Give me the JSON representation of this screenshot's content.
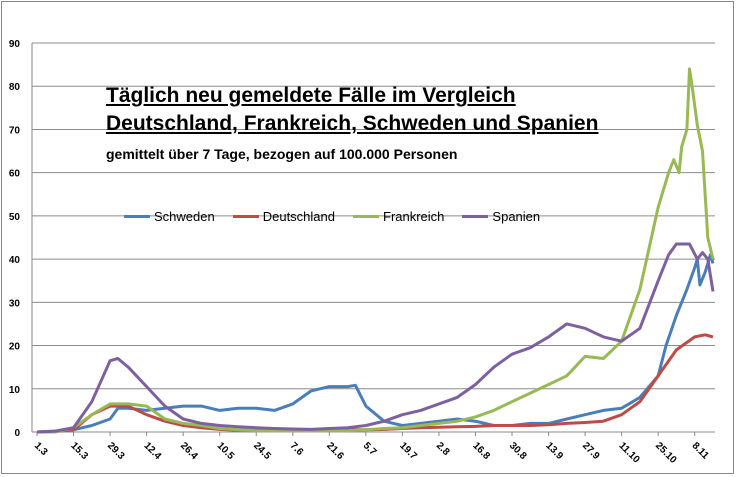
{
  "chart_data": {
    "type": "line",
    "title": "Täglich neu gemeldete Fälle im Vergleich",
    "title_line2": "Deutschland, Frankreich, Schweden und Spanien",
    "subtitle": "gemittelt über 7 Tage, bezogen auf 100.000 Personen",
    "xlabel": "",
    "ylabel": "",
    "ylim": [
      0,
      90
    ],
    "yticks": [
      0,
      10,
      20,
      30,
      40,
      50,
      60,
      70,
      80,
      90
    ],
    "xlim_days": [
      0,
      260
    ],
    "xtick_labels": [
      "1.3",
      "15.3",
      "29.3",
      "12.4",
      "26.4",
      "10.5",
      "24.5",
      "7.6",
      "21.6",
      "5.7",
      "19.7",
      "2.8",
      "16.8",
      "30.8",
      "13.9",
      "27.9",
      "11.10",
      "25.10",
      "8.11"
    ],
    "xtick_interval_days": 14,
    "grid": true,
    "legend_position": "center-left",
    "series": [
      {
        "name": "Schweden",
        "color": "#4a7ebb",
        "points": [
          [
            0,
            0
          ],
          [
            7,
            0.2
          ],
          [
            14,
            0.5
          ],
          [
            21,
            1.5
          ],
          [
            28,
            3
          ],
          [
            31,
            5.5
          ],
          [
            35,
            5.5
          ],
          [
            42,
            5
          ],
          [
            49,
            5.5
          ],
          [
            56,
            6
          ],
          [
            63,
            6
          ],
          [
            70,
            5
          ],
          [
            77,
            5.5
          ],
          [
            84,
            5.5
          ],
          [
            91,
            5
          ],
          [
            98,
            6.5
          ],
          [
            105,
            9.5
          ],
          [
            112,
            10.5
          ],
          [
            119,
            10.5
          ],
          [
            122,
            10.8
          ],
          [
            126,
            6
          ],
          [
            133,
            2.5
          ],
          [
            140,
            1.5
          ],
          [
            147,
            2
          ],
          [
            154,
            2.5
          ],
          [
            161,
            3
          ],
          [
            168,
            2.5
          ],
          [
            175,
            1.5
          ],
          [
            182,
            1.5
          ],
          [
            189,
            2
          ],
          [
            196,
            2
          ],
          [
            203,
            3
          ],
          [
            210,
            4
          ],
          [
            217,
            5
          ],
          [
            224,
            5.5
          ],
          [
            231,
            8
          ],
          [
            238,
            13
          ],
          [
            241,
            20
          ],
          [
            245,
            27
          ],
          [
            249,
            33
          ],
          [
            252,
            38
          ],
          [
            253,
            40
          ],
          [
            254,
            34
          ],
          [
            256,
            37
          ],
          [
            258,
            41
          ],
          [
            259,
            39
          ]
        ]
      },
      {
        "name": "Deutschland",
        "color": "#be4b48",
        "points": [
          [
            0,
            0
          ],
          [
            7,
            0.1
          ],
          [
            14,
            0.5
          ],
          [
            21,
            4
          ],
          [
            28,
            6
          ],
          [
            35,
            6
          ],
          [
            42,
            4
          ],
          [
            49,
            2.5
          ],
          [
            56,
            1.5
          ],
          [
            63,
            1
          ],
          [
            70,
            0.6
          ],
          [
            77,
            0.4
          ],
          [
            84,
            0.4
          ],
          [
            91,
            0.4
          ],
          [
            98,
            0.4
          ],
          [
            105,
            0.4
          ],
          [
            112,
            0.4
          ],
          [
            119,
            0.5
          ],
          [
            126,
            0.5
          ],
          [
            133,
            0.6
          ],
          [
            140,
            0.8
          ],
          [
            147,
            1
          ],
          [
            154,
            1.1
          ],
          [
            161,
            1.2
          ],
          [
            168,
            1.3
          ],
          [
            175,
            1.5
          ],
          [
            182,
            1.5
          ],
          [
            189,
            1.5
          ],
          [
            196,
            1.7
          ],
          [
            203,
            2
          ],
          [
            210,
            2.2
          ],
          [
            217,
            2.5
          ],
          [
            224,
            4
          ],
          [
            231,
            7
          ],
          [
            238,
            13
          ],
          [
            245,
            19
          ],
          [
            252,
            22
          ],
          [
            256,
            22.5
          ],
          [
            259,
            22
          ]
        ]
      },
      {
        "name": "Frankreich",
        "color": "#98b954",
        "points": [
          [
            0,
            0
          ],
          [
            7,
            0
          ],
          [
            14,
            1
          ],
          [
            21,
            4
          ],
          [
            28,
            6.5
          ],
          [
            35,
            6.5
          ],
          [
            42,
            6
          ],
          [
            49,
            3
          ],
          [
            56,
            2
          ],
          [
            63,
            1.5
          ],
          [
            70,
            0.8
          ],
          [
            77,
            0.5
          ],
          [
            84,
            0.3
          ],
          [
            91,
            0.3
          ],
          [
            98,
            0.3
          ],
          [
            105,
            0.3
          ],
          [
            112,
            0.3
          ],
          [
            119,
            0.3
          ],
          [
            126,
            0.5
          ],
          [
            133,
            0.8
          ],
          [
            140,
            1
          ],
          [
            147,
            1.5
          ],
          [
            154,
            2
          ],
          [
            161,
            2.5
          ],
          [
            168,
            3.5
          ],
          [
            175,
            5
          ],
          [
            182,
            7
          ],
          [
            189,
            9
          ],
          [
            196,
            11
          ],
          [
            203,
            13
          ],
          [
            210,
            17.5
          ],
          [
            217,
            17
          ],
          [
            224,
            21
          ],
          [
            231,
            33
          ],
          [
            238,
            52
          ],
          [
            242,
            60
          ],
          [
            244,
            63
          ],
          [
            246,
            60
          ],
          [
            247,
            66
          ],
          [
            249,
            70
          ],
          [
            250,
            84
          ],
          [
            251,
            80
          ],
          [
            253,
            71
          ],
          [
            255,
            65
          ],
          [
            257,
            45
          ],
          [
            259,
            40
          ]
        ]
      },
      {
        "name": "Spanien",
        "color": "#7d60a0",
        "points": [
          [
            0,
            0
          ],
          [
            7,
            0.2
          ],
          [
            14,
            1
          ],
          [
            21,
            7
          ],
          [
            28,
            16.5
          ],
          [
            31,
            17
          ],
          [
            35,
            15
          ],
          [
            42,
            10.5
          ],
          [
            49,
            6
          ],
          [
            56,
            3
          ],
          [
            63,
            2
          ],
          [
            70,
            1.5
          ],
          [
            77,
            1.2
          ],
          [
            84,
            1
          ],
          [
            91,
            0.8
          ],
          [
            98,
            0.7
          ],
          [
            105,
            0.6
          ],
          [
            112,
            0.8
          ],
          [
            119,
            1
          ],
          [
            126,
            1.5
          ],
          [
            133,
            2.5
          ],
          [
            140,
            4
          ],
          [
            147,
            5
          ],
          [
            154,
            6.5
          ],
          [
            161,
            8
          ],
          [
            168,
            11
          ],
          [
            175,
            15
          ],
          [
            182,
            18
          ],
          [
            189,
            19.5
          ],
          [
            196,
            22
          ],
          [
            203,
            25
          ],
          [
            210,
            24
          ],
          [
            217,
            22
          ],
          [
            224,
            21
          ],
          [
            231,
            24
          ],
          [
            238,
            35
          ],
          [
            242,
            41
          ],
          [
            245,
            43.5
          ],
          [
            250,
            43.5
          ],
          [
            253,
            40
          ],
          [
            255,
            41.5
          ],
          [
            257,
            40
          ],
          [
            259,
            32.5
          ]
        ]
      }
    ]
  }
}
